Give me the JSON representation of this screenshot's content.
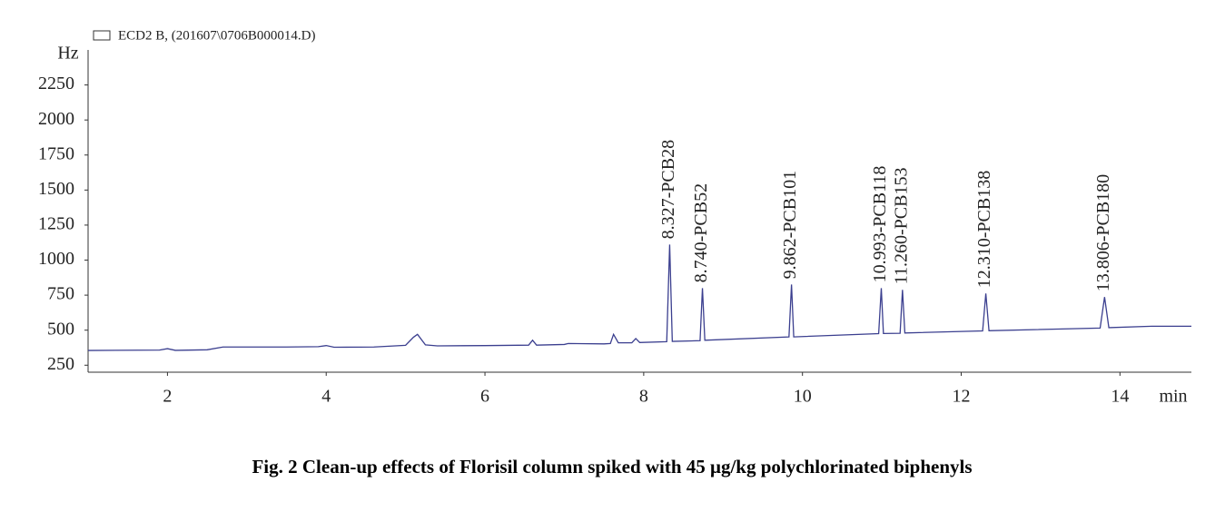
{
  "chart_data": {
    "type": "line",
    "title": "Fig. 2 Clean-up effects of Florisil column spiked with 45 μg/kg polychlorinated biphenyls",
    "x_label": "min",
    "y_label": "Hz",
    "x": [
      1.0,
      1.9,
      2.0,
      2.1,
      2.5,
      2.7,
      3.5,
      3.9,
      4.0,
      4.1,
      4.6,
      5.0,
      5.1,
      5.15,
      5.25,
      5.4,
      6.0,
      6.55,
      6.6,
      6.65,
      7.0,
      7.05,
      7.5,
      7.58,
      7.62,
      7.68,
      7.85,
      7.9,
      7.95,
      8.29,
      8.327,
      8.36,
      8.71,
      8.74,
      8.77,
      9.83,
      9.862,
      9.89,
      10.96,
      10.993,
      11.02,
      11.23,
      11.26,
      11.29,
      12.27,
      12.31,
      12.35,
      13.75,
      13.806,
      13.86,
      14.4,
      14.9
    ],
    "series": [
      {
        "name": "ECD2 B, (201607\\0706B000014.D)",
        "color": "#3b3f8f",
        "values": [
          355,
          358,
          368,
          356,
          360,
          380,
          380,
          382,
          390,
          378,
          380,
          392,
          450,
          470,
          395,
          388,
          390,
          393,
          428,
          393,
          398,
          405,
          402,
          405,
          470,
          410,
          410,
          440,
          412,
          418,
          1111,
          420,
          425,
          800,
          428,
          452,
          826,
          452,
          475,
          800,
          476,
          478,
          788,
          480,
          495,
          762,
          496,
          515,
          736,
          518,
          528,
          528
        ]
      }
    ],
    "annotations": [
      {
        "text": "8.327-PCB28",
        "x": 8.327,
        "y": 1111
      },
      {
        "text": "8.740-PCB52",
        "x": 8.74,
        "y": 800
      },
      {
        "text": "9.862-PCB101",
        "x": 9.862,
        "y": 826
      },
      {
        "text": "10.993-PCB118",
        "x": 10.993,
        "y": 800
      },
      {
        "text": "11.260-PCB153",
        "x": 11.26,
        "y": 788
      },
      {
        "text": "12.310-PCB138",
        "x": 12.31,
        "y": 762
      },
      {
        "text": "13.806-PCB180",
        "x": 13.806,
        "y": 736
      }
    ],
    "xlim": [
      1,
      14.9
    ],
    "ylim": [
      200,
      2500
    ],
    "xticks": [
      2,
      4,
      6,
      8,
      10,
      12,
      14
    ],
    "yticks": [
      250,
      500,
      750,
      1000,
      1250,
      1500,
      1750,
      2000,
      2250
    ],
    "grid": false
  }
}
